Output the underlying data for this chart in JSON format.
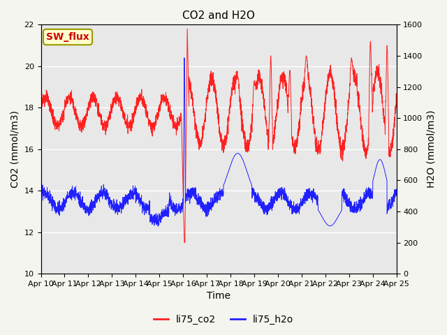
{
  "title": "CO2 and H2O",
  "xlabel": "Time",
  "ylabel_left": "CO2 (mmol/m3)",
  "ylabel_right": "H2O (mmol/m3)",
  "xlim": [
    0,
    15
  ],
  "ylim_left": [
    10,
    22
  ],
  "ylim_right": [
    0,
    1600
  ],
  "yticks_left": [
    10,
    12,
    14,
    16,
    18,
    20,
    22
  ],
  "yticks_right": [
    0,
    200,
    400,
    600,
    800,
    1000,
    1200,
    1400,
    1600
  ],
  "xtick_labels": [
    "Apr 10",
    "Apr 11",
    "Apr 12",
    "Apr 13",
    "Apr 14",
    "Apr 15",
    "Apr 16",
    "Apr 17",
    "Apr 18",
    "Apr 19",
    "Apr 20",
    "Apr 21",
    "Apr 22",
    "Apr 23",
    "Apr 24",
    "Apr 25"
  ],
  "color_co2": "#ff2020",
  "color_h2o": "#2020ff",
  "label_co2": "li75_co2",
  "label_h2o": "li75_h2o",
  "annotation_text": "SW_flux",
  "annotation_color": "#cc0000",
  "annotation_bg": "#ffffcc",
  "bg_color": "#e8e8e8",
  "title_fontsize": 11,
  "legend_fontsize": 10,
  "axis_fontsize": 10,
  "tick_fontsize": 8
}
